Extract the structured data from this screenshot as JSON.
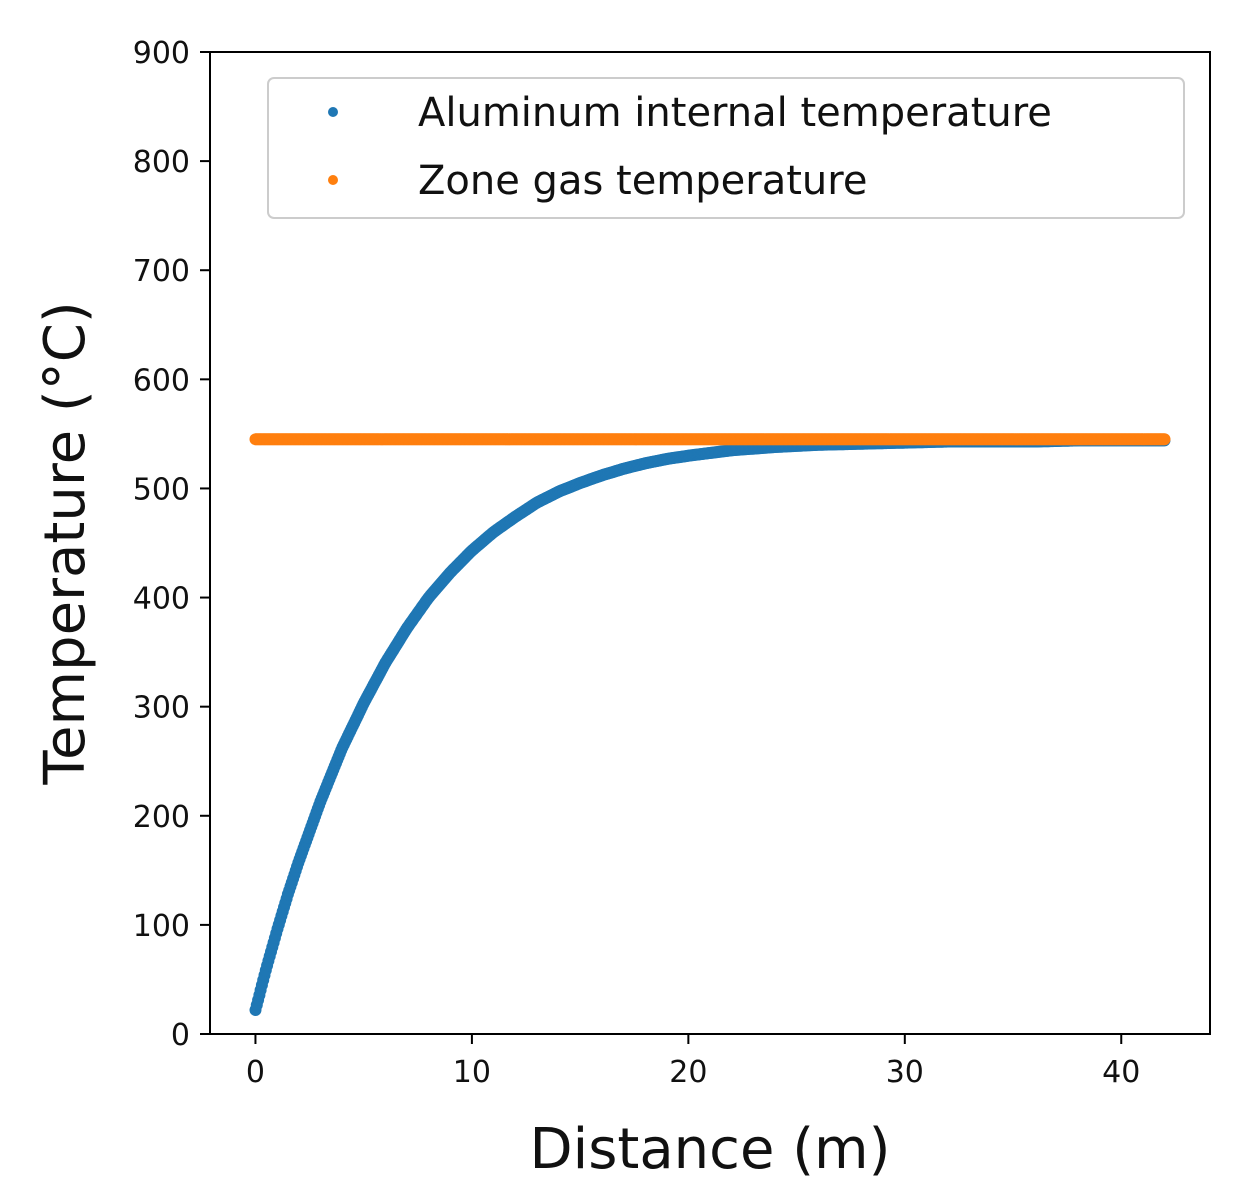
{
  "chart_data": {
    "type": "scatter",
    "xlabel": "Distance (m)",
    "ylabel": "Temperature (°C)",
    "xlim": [
      -2.1,
      44.1
    ],
    "ylim": [
      0,
      900
    ],
    "xticks": [
      0,
      10,
      20,
      30,
      40
    ],
    "yticks": [
      0,
      100,
      200,
      300,
      400,
      500,
      600,
      700,
      800,
      900
    ],
    "grid": false,
    "legend_position": "top-right",
    "series": [
      {
        "name": "Aluminum internal temperature",
        "color": "#1f77b4",
        "x": [
          0,
          0.5,
          1,
          1.5,
          2,
          3,
          4,
          5,
          6,
          7,
          8,
          9,
          10,
          11,
          12,
          13,
          14,
          15,
          16,
          17,
          18,
          19,
          20,
          22,
          24,
          26,
          28,
          30,
          32,
          34,
          36,
          38,
          40,
          42
        ],
        "y": [
          22,
          60,
          95,
          128,
          158,
          213,
          262,
          303,
          340,
          372,
          400,
          423,
          443,
          460,
          474,
          487,
          497,
          505,
          512,
          518,
          523,
          527,
          530,
          535,
          538,
          540,
          541,
          542,
          543,
          543,
          543,
          544,
          544,
          544
        ]
      },
      {
        "name": "Zone gas temperature",
        "color": "#ff7f0e",
        "x": [
          0,
          42
        ],
        "y": [
          545,
          545
        ]
      }
    ]
  }
}
